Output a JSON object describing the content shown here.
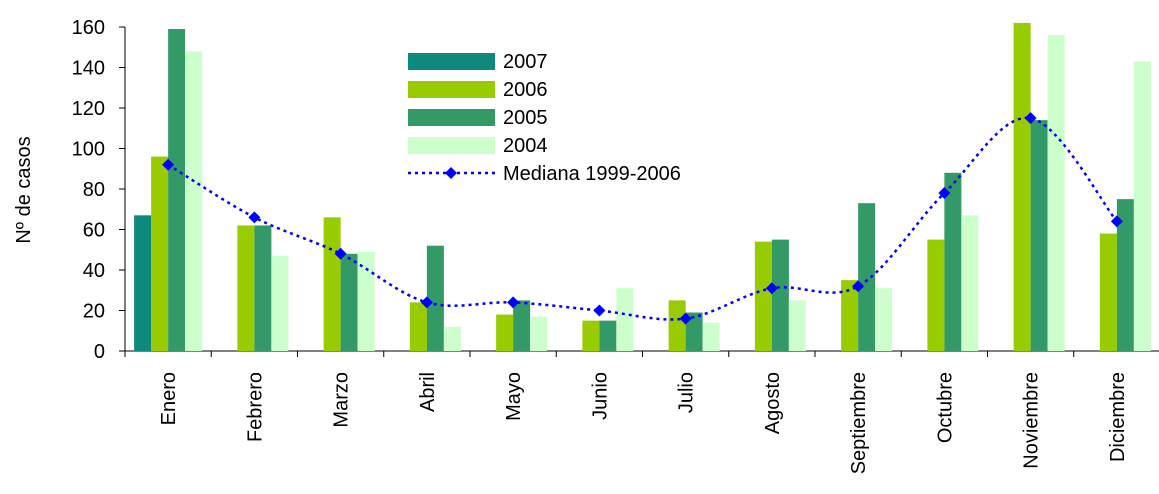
{
  "chart_data": {
    "type": "bar",
    "y_label": "Nº de casos",
    "categories": [
      "Enero",
      "Febrero",
      "Marzo",
      "Abril",
      "Mayo",
      "Junio",
      "Julio",
      "Agosto",
      "Septiembre",
      "Octubre",
      "Noviembre",
      "Diciembre"
    ],
    "series": [
      {
        "name": "2007",
        "color": "#0e8a7c",
        "values": [
          67,
          null,
          null,
          null,
          null,
          null,
          null,
          null,
          null,
          null,
          null,
          null
        ]
      },
      {
        "name": "2006",
        "color": "#99cc00",
        "values": [
          96,
          62,
          66,
          24,
          18,
          15,
          25,
          54,
          35,
          55,
          162,
          58
        ]
      },
      {
        "name": "2005",
        "color": "#339966",
        "values": [
          159,
          62,
          48,
          52,
          25,
          15,
          19,
          55,
          73,
          88,
          114,
          75
        ]
      },
      {
        "name": "2004",
        "color": "#ccffcc",
        "values": [
          148,
          47,
          49,
          12,
          17,
          31,
          14,
          25,
          31,
          67,
          156,
          143
        ]
      },
      {
        "name": "Mediana 1999-2006",
        "type": "line",
        "color": "#0000ff",
        "values": [
          92,
          66,
          48,
          24,
          24,
          20,
          16,
          31,
          32,
          78,
          115,
          64
        ]
      }
    ],
    "ylim": [
      0,
      160
    ],
    "yticks": [
      0,
      20,
      40,
      60,
      80,
      100,
      120,
      140,
      160
    ]
  }
}
